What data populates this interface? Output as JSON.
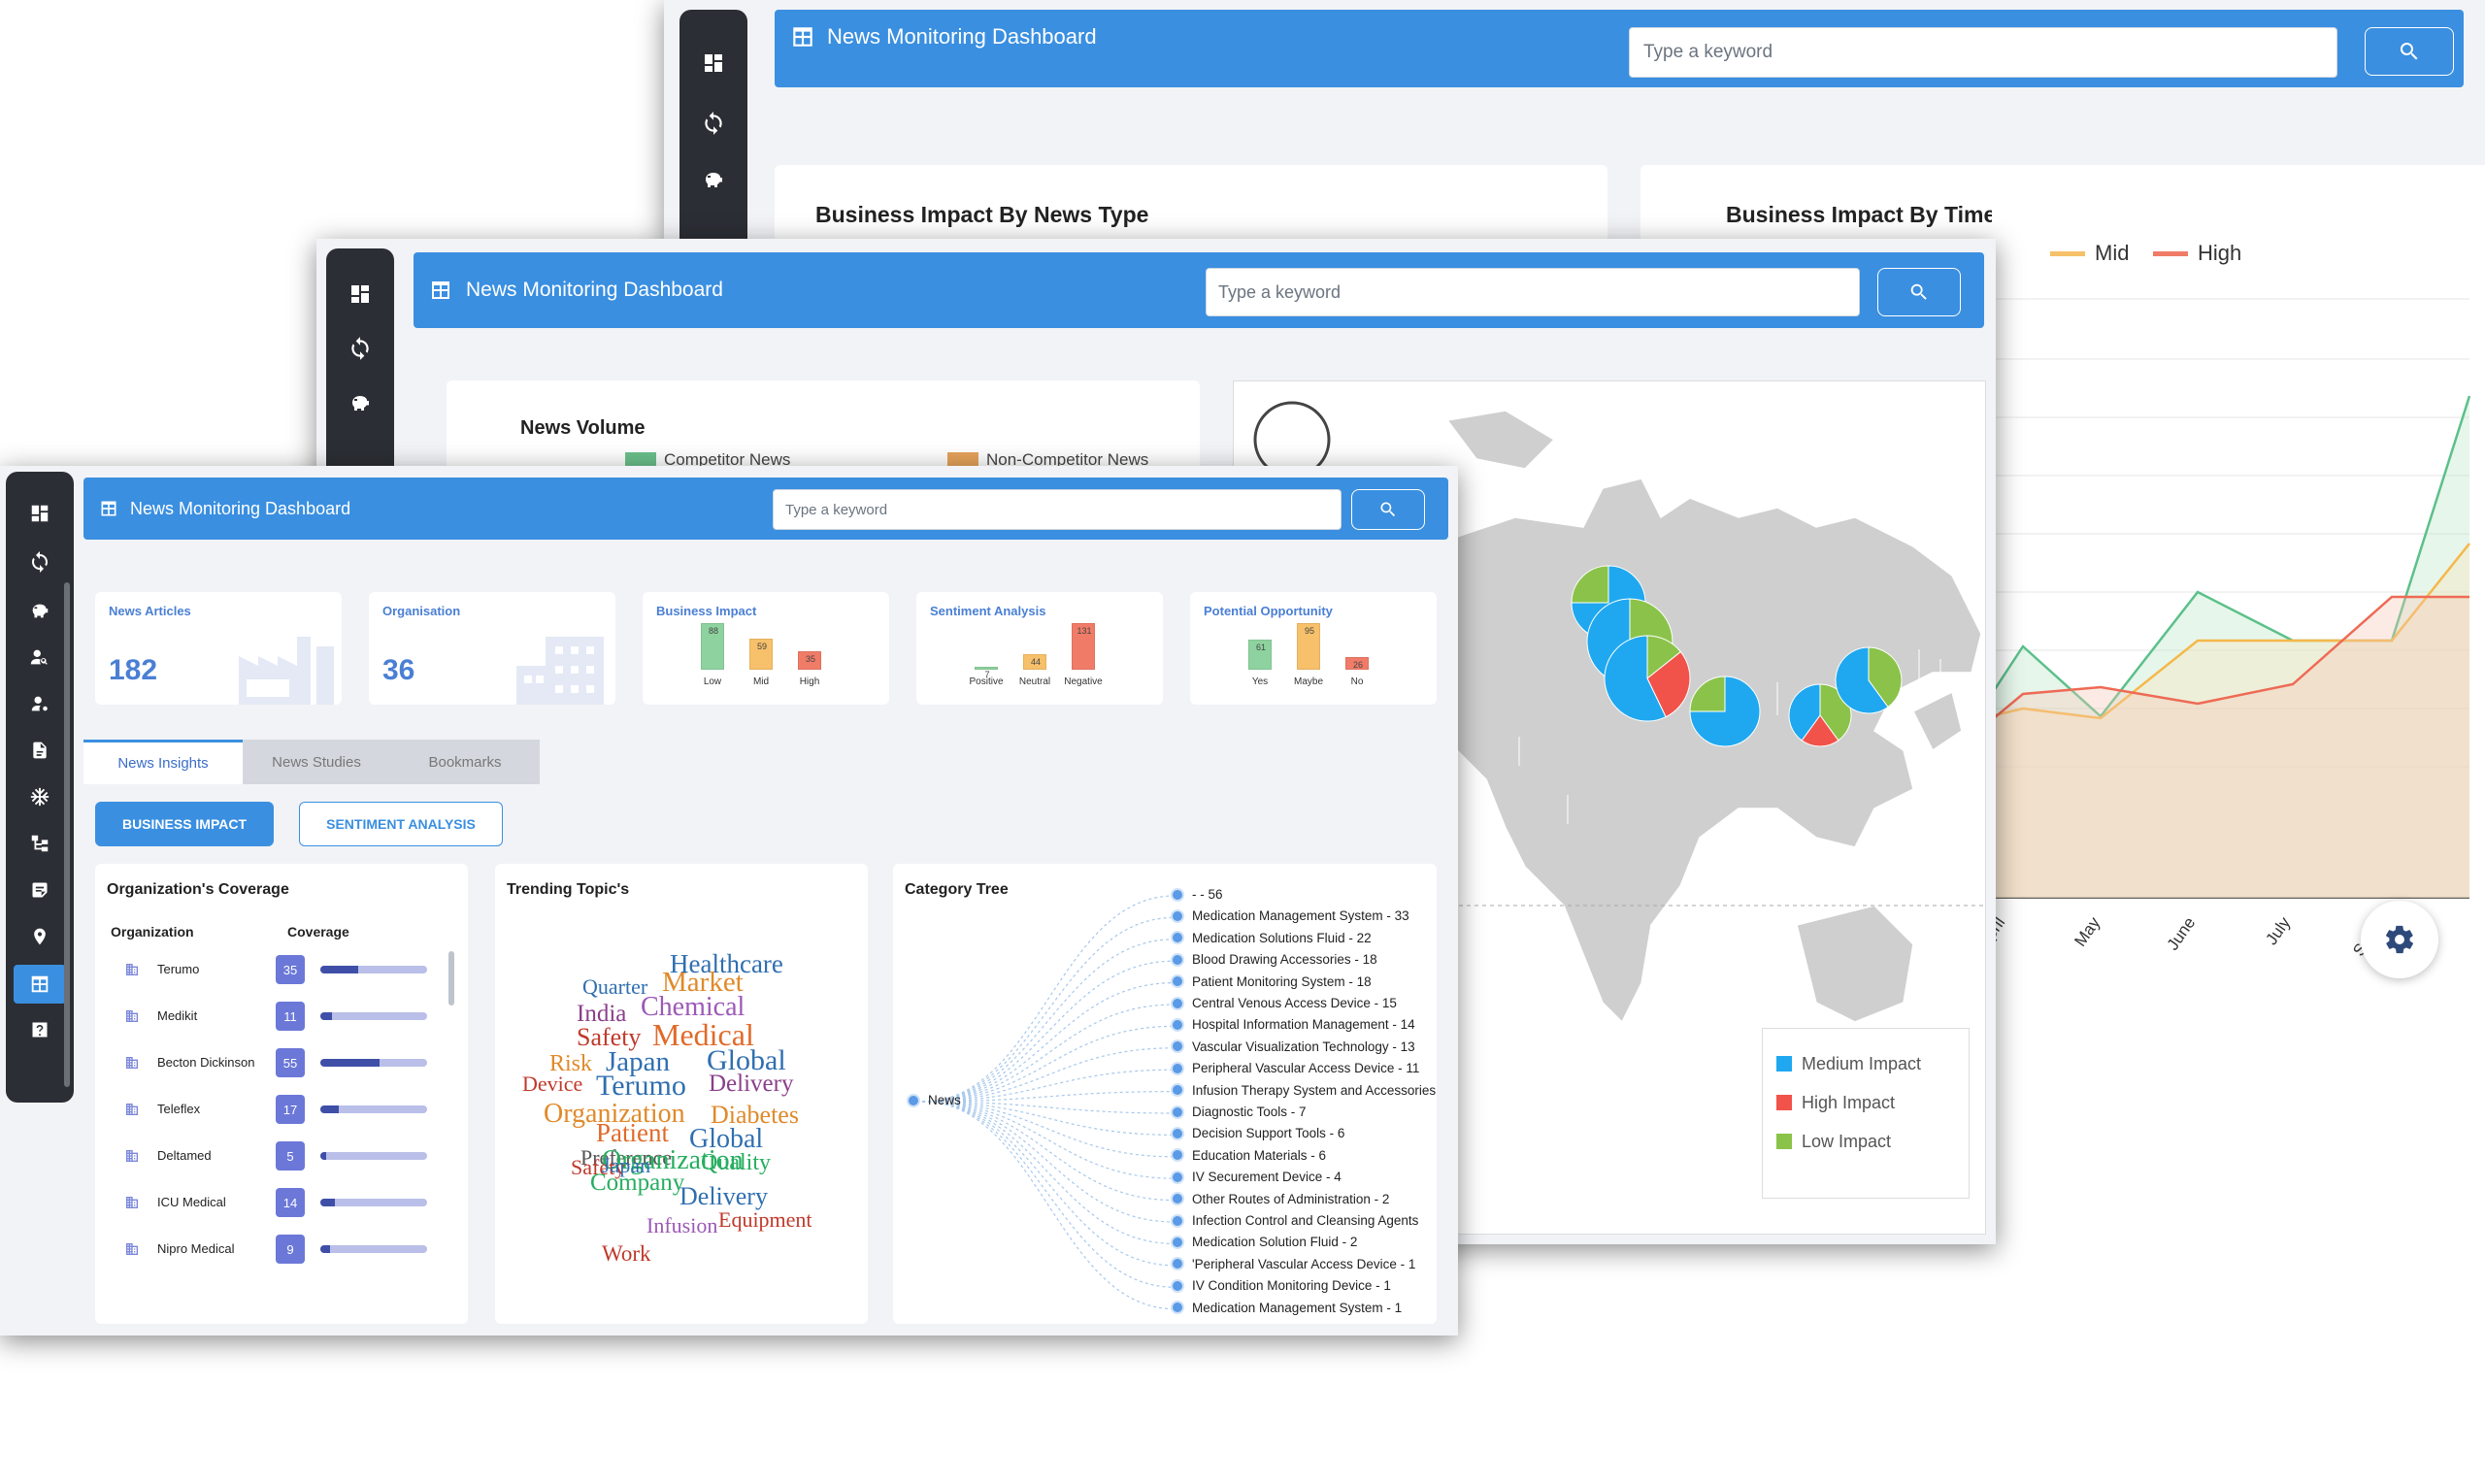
{
  "app_title": "News Monitoring Dashboard",
  "search": {
    "placeholder": "Type a keyword"
  },
  "back": {
    "cards": {
      "impact_by_type": "Business Impact By News Type",
      "impact_by_time": "Business Impact By Time"
    },
    "legend": {
      "mid": "Mid",
      "high": "High"
    },
    "months": [
      "April",
      "May",
      "June",
      "July",
      "Septe"
    ]
  },
  "middle": {
    "news_volume": "News Volume",
    "legend": {
      "competitor": "Competitor News",
      "non_competitor": "Non-Competitor News"
    },
    "map_legend": [
      "Medium Impact",
      "High Impact",
      "Low Impact"
    ]
  },
  "front": {
    "stats": [
      {
        "label": "News Articles",
        "value": "182"
      },
      {
        "label": "Organisation",
        "value": "36"
      }
    ],
    "business_impact": {
      "label": "Business Impact",
      "bars": [
        {
          "name": "Low",
          "value": 88
        },
        {
          "name": "Mid",
          "value": 59
        },
        {
          "name": "High",
          "value": 35
        }
      ]
    },
    "sentiment": {
      "label": "Sentiment Analysis",
      "bars": [
        {
          "name": "Positive",
          "value": 7
        },
        {
          "name": "Neutral",
          "value": 44
        },
        {
          "name": "Negative",
          "value": 131
        }
      ]
    },
    "opportunity": {
      "label": "Potential Opportunity",
      "bars": [
        {
          "name": "Yes",
          "value": 61
        },
        {
          "name": "Maybe",
          "value": 95
        },
        {
          "name": "No",
          "value": 26
        }
      ]
    },
    "tabs": [
      "News Insights",
      "News Studies",
      "Bookmarks"
    ],
    "buttons": {
      "business_impact": "BUSINESS IMPACT",
      "sentiment": "SENTIMENT ANALYSIS"
    },
    "coverage": {
      "title": "Organization's Coverage",
      "col_org": "Organization",
      "col_cov": "Coverage",
      "rows": [
        {
          "name": "Terumo",
          "value": "35",
          "fill": 0.35
        },
        {
          "name": "Medikit",
          "value": "11",
          "fill": 0.11
        },
        {
          "name": "Becton Dickinson",
          "value": "55",
          "fill": 0.55
        },
        {
          "name": "Teleflex",
          "value": "17",
          "fill": 0.17
        },
        {
          "name": "Deltamed",
          "value": "5",
          "fill": 0.05
        },
        {
          "name": "ICU Medical",
          "value": "14",
          "fill": 0.14
        },
        {
          "name": "Nipro Medical",
          "value": "9",
          "fill": 0.09
        }
      ]
    },
    "trending": {
      "title": "Trending Topic's",
      "words": [
        "Healthcare",
        "Quarter",
        "Market",
        "India",
        "Chemical",
        "Safety",
        "Medical",
        "Risk",
        "Japan",
        "Global",
        "Device",
        "Terumo",
        "Delivery",
        "Organization",
        "Diabetes",
        "Patient",
        "Global",
        "Preference",
        "Organization",
        "Safety",
        "Japan",
        "Quality",
        "Company",
        "Delivery",
        "Infusion",
        "Equipment",
        "Work"
      ]
    },
    "tree": {
      "title": "Category Tree",
      "root": "News",
      "items": [
        "- - 56",
        "Medication Management System - 33",
        "Medication Solutions Fluid - 22",
        "Blood Drawing Accessories - 18",
        "Patient Monitoring System - 18",
        "Central Venous Access Device - 15",
        "Hospital Information Management - 14",
        "Vascular Visualization Technology - 13",
        "Peripheral Vascular Access Device - 11",
        "Infusion Therapy System and Accessories",
        "Diagnostic Tools - 7",
        "Decision Support Tools - 6",
        "Education Materials - 6",
        "IV Securement Device - 4",
        "Other Routes of Administration - 2",
        "Infection Control and Cleansing Agents",
        "Medication Solution Fluid - 2",
        "'Peripheral Vascular Access Device - 1",
        "IV Condition Monitoring Device - 1",
        "Medication Management System - 1"
      ]
    }
  },
  "colors": {
    "brand": "#3a8fe0",
    "sidebar": "#2b2e34",
    "green": "#8ed39f",
    "orange": "#f7c06a",
    "red": "#f07c68",
    "map_blue": "#1fa8f0",
    "map_red": "#f1524a",
    "map_green": "#8bc34a"
  }
}
